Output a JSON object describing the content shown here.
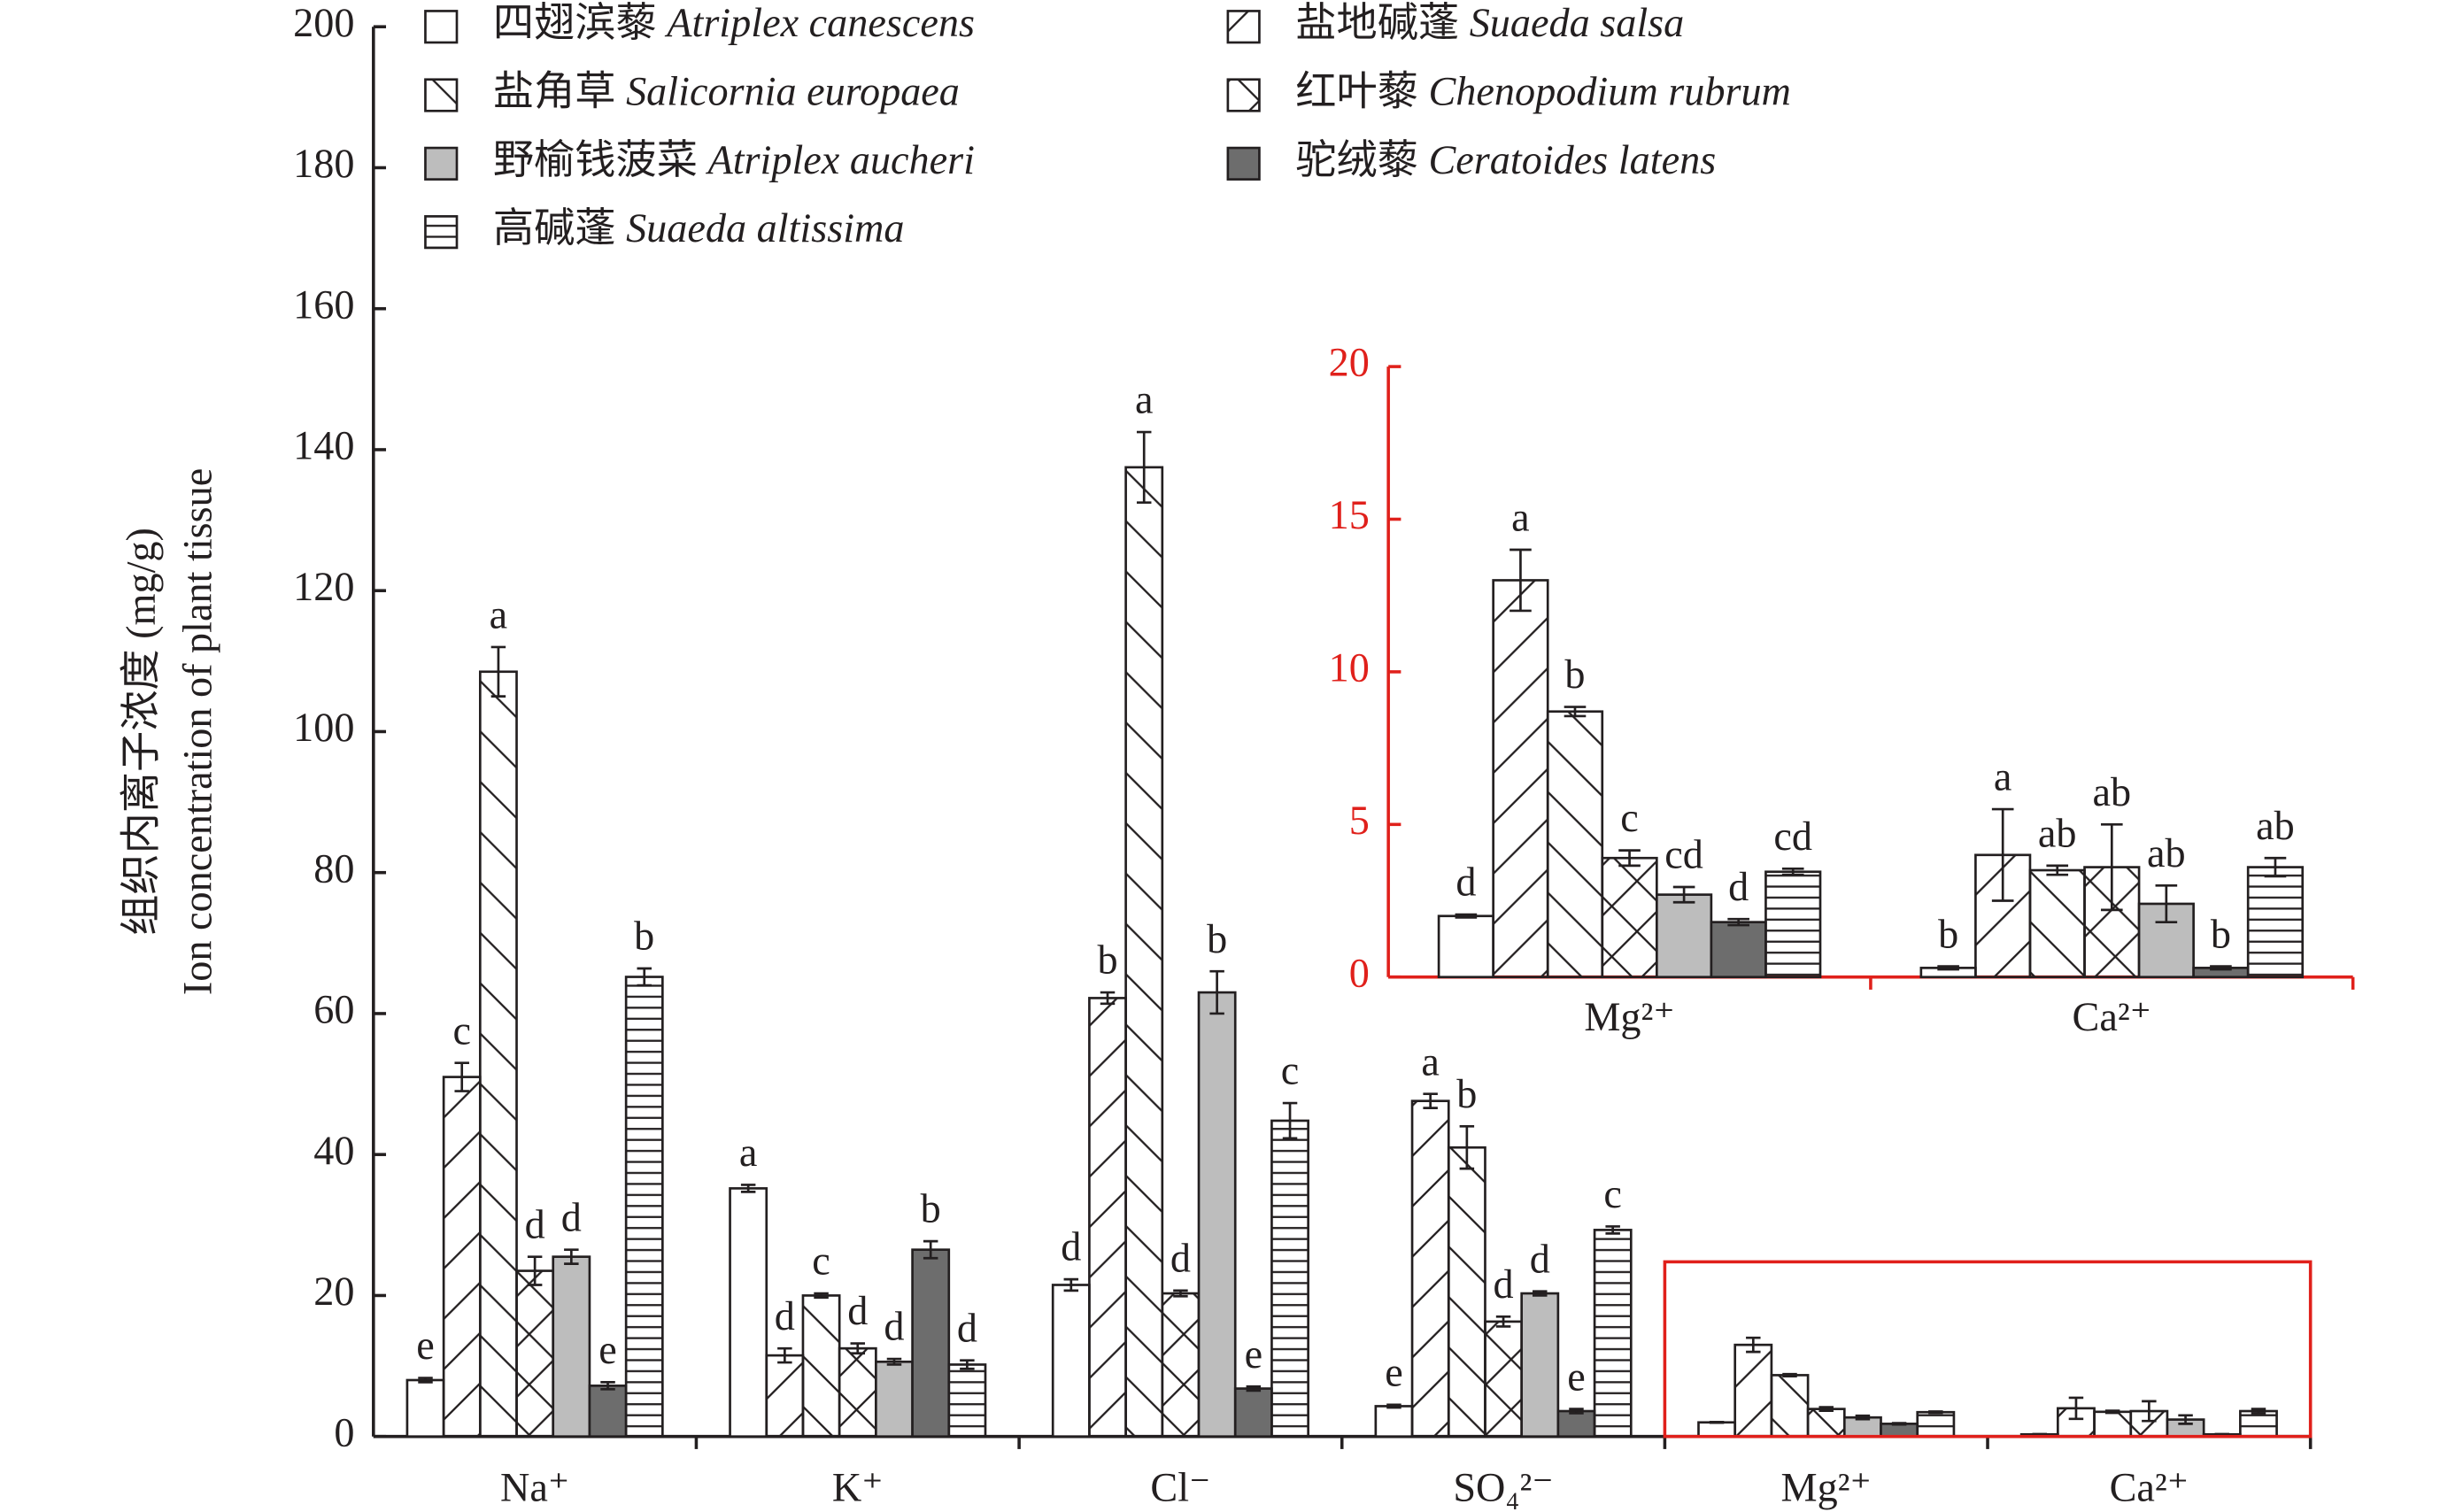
{
  "chart_data": [
    {
      "type": "bar",
      "y_label": [
        "组织内离子浓度 (mg/g)",
        "Ion concentration of plant tissue"
      ],
      "categories": [
        "Na⁺",
        "K⁺",
        "Cl⁻",
        "SO₄²⁻",
        "Mg²⁺",
        "Ca²⁺"
      ],
      "ylim": [
        0,
        200
      ],
      "yticks": [
        0,
        20,
        40,
        60,
        80,
        100,
        120,
        140,
        160,
        180,
        200
      ],
      "axis_color": "#231f20",
      "series": [
        {
          "name": "四翅滨藜",
          "latin": "Atriplex canescens",
          "color": "#ffffff",
          "pattern": "none",
          "values": [
            8,
            35.2,
            21.5,
            4.3,
            2.0,
            0.3
          ],
          "errors": [
            0.3,
            0.5,
            0.8,
            0.2,
            0.05,
            0.05
          ],
          "letters": [
            "e",
            "a",
            "d",
            "e",
            null,
            null
          ]
        },
        {
          "name": "盐地碱蓬",
          "latin": "Suaeda salsa",
          "color": "#ffffff",
          "pattern": "diag-up",
          "values": [
            51,
            11.5,
            62.2,
            47.6,
            13.0,
            4.0
          ],
          "errors": [
            2,
            1,
            0.8,
            1,
            1,
            1.5
          ],
          "letters": [
            "c",
            "d",
            "b",
            "a",
            null,
            null
          ]
        },
        {
          "name": "盐角草",
          "latin": "Salicornia europaea",
          "color": "#ffffff",
          "pattern": "diag-down",
          "values": [
            108.5,
            20,
            137.5,
            41,
            8.7,
            3.5
          ],
          "errors": [
            3.5,
            0.3,
            5,
            3,
            0.15,
            0.15
          ],
          "letters": [
            "a",
            "c",
            "a",
            "b",
            null,
            null
          ]
        },
        {
          "name": "红叶藜",
          "latin": "Chenopodium rubrum",
          "color": "#ffffff",
          "pattern": "cross",
          "values": [
            23.5,
            12.5,
            20.3,
            16.3,
            3.9,
            3.6
          ],
          "errors": [
            2,
            0.7,
            0.4,
            0.7,
            0.25,
            1.4
          ],
          "letters": [
            "d",
            "d",
            "d",
            "d",
            null,
            null
          ]
        },
        {
          "name": "野榆钱菠菜",
          "latin": "Atriplex aucheri",
          "color": "#bdbdbd",
          "pattern": "none",
          "values": [
            25.5,
            10.6,
            63,
            20.3,
            2.7,
            2.4
          ],
          "errors": [
            1,
            0.4,
            3,
            0.3,
            0.25,
            0.6
          ],
          "letters": [
            "d",
            "d",
            "b",
            "d",
            null,
            null
          ]
        },
        {
          "name": "驼绒藜",
          "latin": "Ceratoides latens",
          "color": "#6d6d6d",
          "pattern": "none",
          "values": [
            7.2,
            26.5,
            6.8,
            3.6,
            1.8,
            0.3
          ],
          "errors": [
            0.5,
            1.2,
            0.3,
            0.3,
            0.1,
            0.05
          ],
          "letters": [
            "e",
            "b",
            "e",
            "e",
            null,
            null
          ]
        },
        {
          "name": "高碱蓬",
          "latin": "Suaeda altissima",
          "color": "#ffffff",
          "pattern": "horizontal",
          "values": [
            65.2,
            10.2,
            44.8,
            29.3,
            3.45,
            3.6
          ],
          "errors": [
            1.2,
            0.6,
            2.5,
            0.5,
            0.1,
            0.3
          ],
          "letters": [
            "b",
            "d",
            "c",
            "c",
            null,
            null
          ]
        }
      ]
    },
    {
      "type": "bar",
      "categories": [
        "Mg²⁺",
        "Ca²⁺"
      ],
      "ylim": [
        0,
        20
      ],
      "yticks": [
        0,
        5,
        10,
        15,
        20
      ],
      "axis_color": "#e0201b",
      "series": [
        {
          "color": "#ffffff",
          "pattern": "none",
          "values": [
            2.0,
            0.3
          ],
          "errors": [
            0.05,
            0.05
          ],
          "letters": [
            "d",
            "b"
          ]
        },
        {
          "color": "#ffffff",
          "pattern": "diag-up",
          "values": [
            13.0,
            4.0
          ],
          "errors": [
            1.0,
            1.5
          ],
          "letters": [
            "a",
            "a"
          ]
        },
        {
          "color": "#ffffff",
          "pattern": "diag-down",
          "values": [
            8.7,
            3.5
          ],
          "errors": [
            0.15,
            0.15
          ],
          "letters": [
            "b",
            "ab"
          ]
        },
        {
          "color": "#ffffff",
          "pattern": "cross",
          "values": [
            3.9,
            3.6
          ],
          "errors": [
            0.25,
            1.4
          ],
          "letters": [
            "c",
            "ab"
          ]
        },
        {
          "color": "#bdbdbd",
          "pattern": "none",
          "values": [
            2.7,
            2.4
          ],
          "errors": [
            0.25,
            0.6
          ],
          "letters": [
            "cd",
            "ab"
          ]
        },
        {
          "color": "#6d6d6d",
          "pattern": "none",
          "values": [
            1.8,
            0.3
          ],
          "errors": [
            0.1,
            0.05
          ],
          "letters": [
            "d",
            "b"
          ]
        },
        {
          "color": "#ffffff",
          "pattern": "horizontal",
          "values": [
            3.45,
            3.6
          ],
          "errors": [
            0.1,
            0.3
          ],
          "letters": [
            "cd",
            "ab"
          ]
        }
      ]
    }
  ]
}
